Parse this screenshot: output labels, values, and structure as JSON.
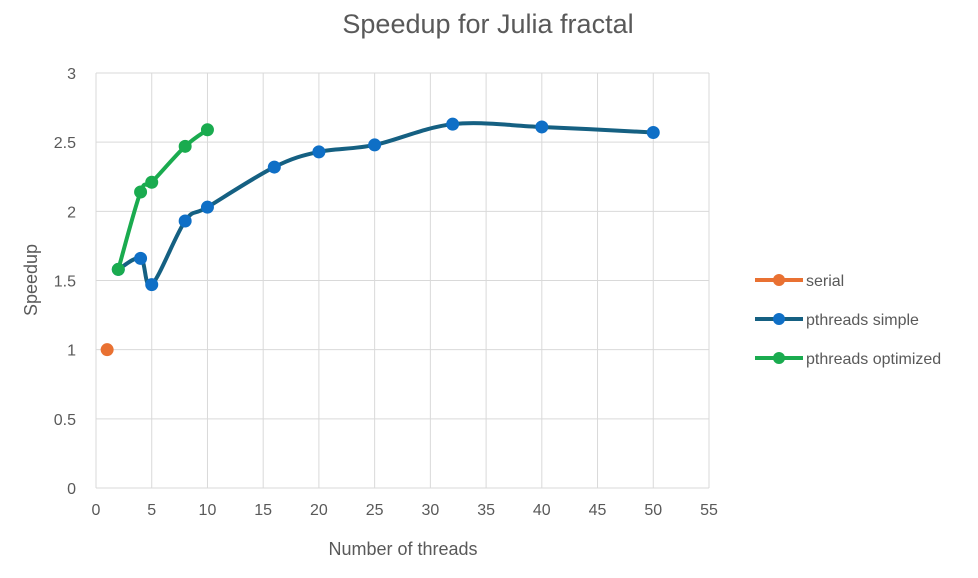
{
  "chart_data": {
    "type": "line",
    "title": "Speedup for Julia fractal",
    "xlabel": "Number of threads",
    "ylabel": "Speedup",
    "xlim": [
      0,
      55
    ],
    "ylim": [
      0,
      3
    ],
    "xticks": [
      "0",
      "5",
      "10",
      "15",
      "20",
      "25",
      "30",
      "35",
      "40",
      "45",
      "50",
      "55"
    ],
    "yticks": [
      "0",
      "0.5",
      "1",
      "1.5",
      "2",
      "2.5",
      "3"
    ],
    "grid": true,
    "smooth": true,
    "legend_position": "right",
    "series": [
      {
        "name": "serial",
        "color": "#e97132",
        "x": [
          1
        ],
        "y": [
          1.0
        ]
      },
      {
        "name": "pthreads simple",
        "color": "#156082",
        "marker_color": "#0f6fc6",
        "x": [
          2,
          4,
          5,
          8,
          10,
          16,
          20,
          25,
          32,
          40,
          50
        ],
        "y": [
          1.58,
          1.66,
          1.47,
          1.93,
          2.03,
          2.32,
          2.43,
          2.48,
          2.63,
          2.61,
          2.57
        ]
      },
      {
        "name": "pthreads optimized",
        "color": "#1aab4f",
        "x": [
          2,
          4,
          5,
          8,
          10
        ],
        "y": [
          1.58,
          2.14,
          2.21,
          2.47,
          2.59
        ]
      }
    ]
  }
}
